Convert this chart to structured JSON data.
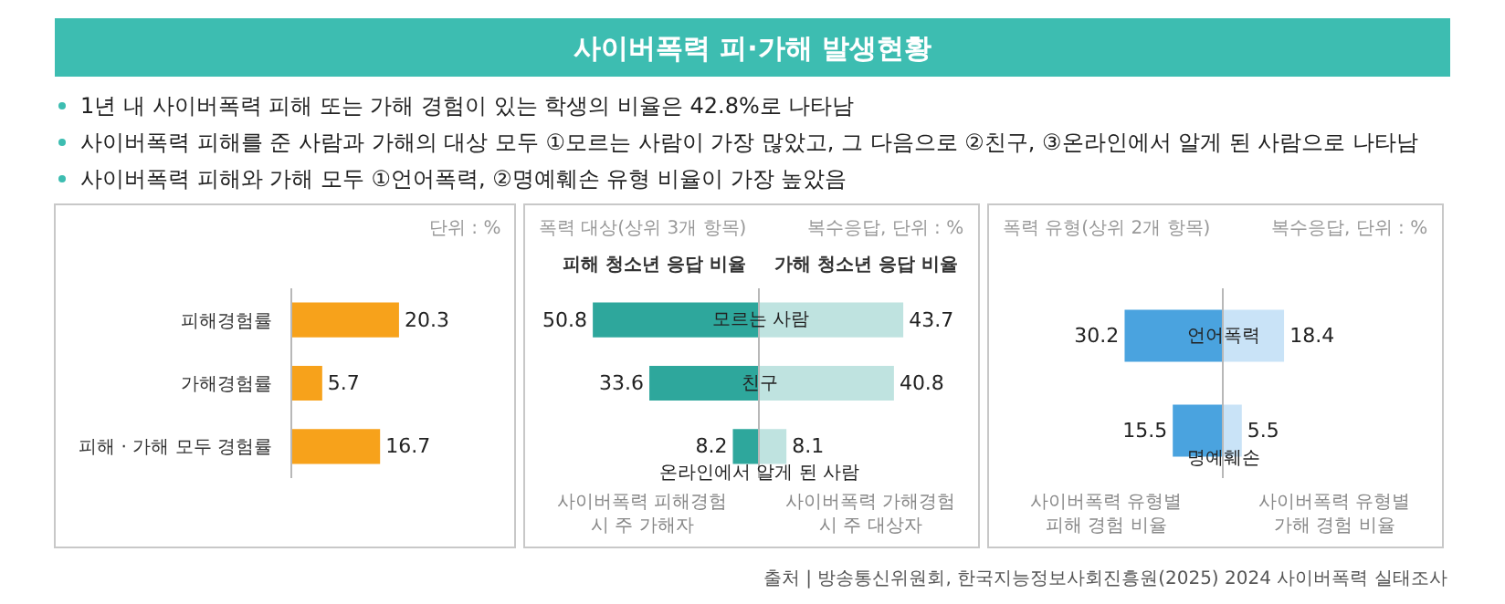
{
  "chart_data": [
    {
      "type": "other",
      "title": "사이버폭력 피·가해 발생현황",
      "annotations": [
        "1년 내 사이버폭력 피해 또는 가해 경험이 있는 학생의 비율은 42.8%로 나타남",
        "사이버폭력 피해를 준 사람과 가해의 대상 모두 ①모르는 사람이 가장 많았고, 그 다음으로 ②친구, ③온라인에서 알게 된 사람으로 나타남",
        "사이버폭력 피해와 가해 모두 ①언어폭력, ②명예훼손 유형 비율이 가장 높았음",
        "출처 | 방송통신위원회, 한국지능정보사회진흥원(2025) 2024 사이버폭력 실태조사"
      ]
    },
    {
      "type": "bar",
      "orientation": "horizontal",
      "categories": [
        "피해경험률",
        "가해경험률",
        "피해 · 가해 모두 경험률"
      ],
      "values": [
        20.3,
        5.7,
        16.7
      ],
      "color": "#f7a21b",
      "data_labels": true,
      "tick_labels": "y",
      "annotations": [
        "단위 : %"
      ]
    },
    {
      "type": "bar",
      "orientation": "horizontal",
      "subtitle": "폭력 대상(상위 3개 항목)",
      "categories": [
        "모르는 사람",
        "친구",
        "온라인에서 알게 된 사람"
      ],
      "xlim": [
        50.8,
        0
      ],
      "series": [
        {
          "name": "피해 청소년 응답 비율",
          "color": "#2ea79c",
          "values": [
            50.8,
            33.6,
            8.2
          ]
        }
      ],
      "data_labels": true,
      "tick_labels": false,
      "annotations": [
        "사이버폭력 피해경험 시 주 가해자"
      ]
    },
    {
      "type": "bar",
      "orientation": "horizontal",
      "categories": [
        null,
        null,
        null
      ],
      "series": [
        {
          "name": "가해 청소년 응답 비율",
          "color": "#bfe3e0",
          "values": [
            43.7,
            40.8,
            8.1
          ]
        }
      ],
      "data_labels": true,
      "tick_labels": false,
      "annotations": [
        "복수응답, 단위 : %",
        "사이버폭력 가해경험 시 주 대상자"
      ]
    },
    {
      "type": "bar",
      "orientation": "horizontal",
      "subtitle": "폭력 유형(상위 2개 항목)",
      "categories": [
        "언어폭력",
        "명예훼손"
      ],
      "xlim": [
        30.2,
        0
      ],
      "series": [
        {
          "color": "#4aa3df",
          "values": [
            30.2,
            15.5
          ]
        }
      ],
      "data_labels": true,
      "tick_labels": false,
      "annotations": [
        "사이버폭력 유형별 피해 경험 비율"
      ]
    },
    {
      "type": "bar",
      "orientation": "horizontal",
      "categories": [
        null,
        null
      ],
      "series": [
        {
          "color": "#c9e3f7",
          "values": [
            18.4,
            5.5
          ]
        }
      ],
      "data_labels": true,
      "tick_labels": false,
      "annotations": [
        "복수응답, 단위 : %",
        "사이버폭력 유형별 가해 경험 비율"
      ]
    }
  ]
}
